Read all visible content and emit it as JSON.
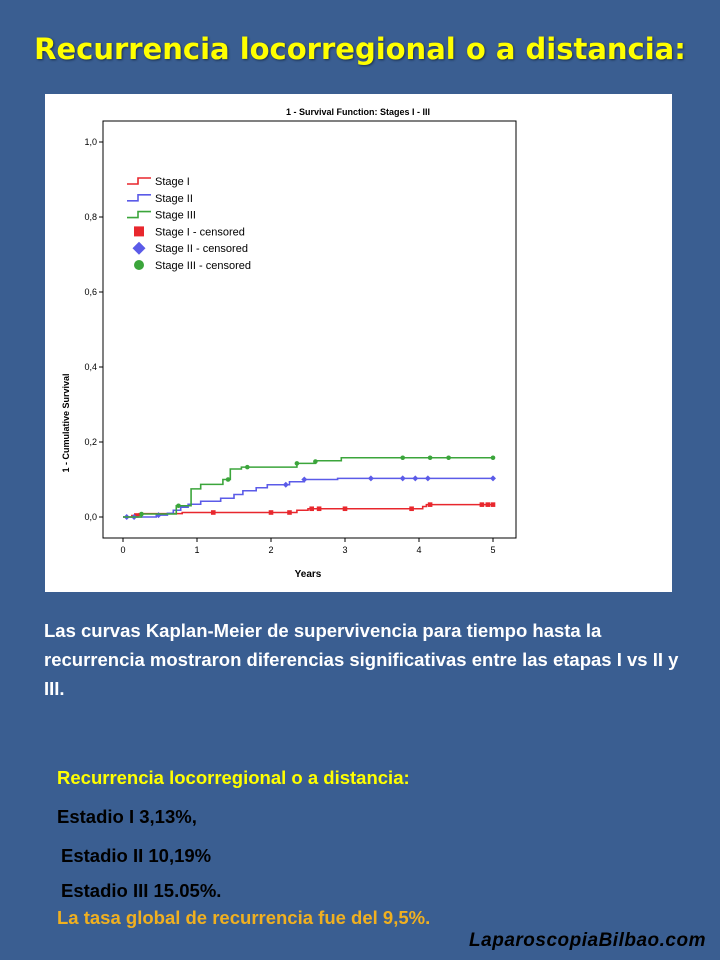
{
  "slide": {
    "title": "Recurrencia locorregional o a distancia:",
    "description": "Las curvas Kaplan-Meier de supervivencia para tiempo hasta la recurrencia mostraron diferencias significativas entre las etapas I vs II y III.",
    "summary_heading": "Recurrencia locorregional o a distancia:",
    "stats": [
      "Estadio I  3,13%,",
      "Estadio II 10,19%",
      "Estadio III 15.05%."
    ],
    "overall": "La tasa global de recurrencia fue del 9,5%.",
    "footer": "LaparoscopiaBilbao.com"
  },
  "chart_data": {
    "type": "line",
    "step": true,
    "title": "1 - Survival Function: Stages I - III",
    "xlabel": "Years",
    "ylabel": "1 - Cumulative Survival",
    "xlim": [
      0,
      5
    ],
    "ylim": [
      0,
      1.0
    ],
    "xticks": [
      "0",
      "1",
      "2",
      "3",
      "4",
      "5"
    ],
    "yticks": [
      "0,0",
      "0,2",
      "0,4",
      "0,6",
      "0,8",
      "1,0"
    ],
    "legend_position": "top-left",
    "grid": false,
    "legend": [
      "Stage I",
      "Stage II",
      "Stage III",
      "Stage I - censored",
      "Stage II - censored",
      "Stage III - censored"
    ],
    "series": [
      {
        "name": "Stage I",
        "color": "#E8272D",
        "censor_shape": "square",
        "steps": [
          [
            0,
            0
          ],
          [
            0.12,
            0.004
          ],
          [
            0.22,
            0.009
          ],
          [
            0.8,
            0.012
          ],
          [
            2.35,
            0.018
          ],
          [
            2.5,
            0.022
          ],
          [
            4.05,
            0.028
          ],
          [
            4.1,
            0.033
          ]
        ],
        "end_x": 5.0,
        "censored": [
          [
            0.18,
            0.004
          ],
          [
            1.22,
            0.012
          ],
          [
            2.0,
            0.012
          ],
          [
            2.25,
            0.012
          ],
          [
            2.55,
            0.022
          ],
          [
            2.65,
            0.022
          ],
          [
            3.0,
            0.022
          ],
          [
            3.9,
            0.022
          ],
          [
            4.15,
            0.033
          ],
          [
            4.85,
            0.033
          ],
          [
            4.93,
            0.033
          ],
          [
            5.0,
            0.033
          ]
        ]
      },
      {
        "name": "Stage II",
        "color": "#5B5BE8",
        "censor_shape": "diamond",
        "steps": [
          [
            0,
            0
          ],
          [
            0.45,
            0.005
          ],
          [
            0.6,
            0.01
          ],
          [
            0.68,
            0.018
          ],
          [
            0.78,
            0.026
          ],
          [
            0.88,
            0.034
          ],
          [
            1.05,
            0.042
          ],
          [
            1.32,
            0.05
          ],
          [
            1.5,
            0.06
          ],
          [
            1.62,
            0.07
          ],
          [
            1.8,
            0.078
          ],
          [
            1.95,
            0.086
          ],
          [
            2.25,
            0.094
          ],
          [
            2.45,
            0.1
          ],
          [
            2.9,
            0.103
          ]
        ],
        "end_x": 5.0,
        "censored": [
          [
            0.05,
            0
          ],
          [
            0.15,
            0
          ],
          [
            0.48,
            0.005
          ],
          [
            2.2,
            0.086
          ],
          [
            2.45,
            0.1
          ],
          [
            3.35,
            0.103
          ],
          [
            3.78,
            0.103
          ],
          [
            3.95,
            0.103
          ],
          [
            4.12,
            0.103
          ],
          [
            5.0,
            0.103
          ]
        ]
      },
      {
        "name": "Stage III",
        "color": "#3BA53B",
        "censor_shape": "circle",
        "steps": [
          [
            0,
            0
          ],
          [
            0.25,
            0.008
          ],
          [
            0.72,
            0.03
          ],
          [
            0.92,
            0.075
          ],
          [
            1.05,
            0.087
          ],
          [
            1.35,
            0.1
          ],
          [
            1.45,
            0.128
          ],
          [
            1.6,
            0.133
          ],
          [
            2.35,
            0.143
          ],
          [
            2.6,
            0.15
          ],
          [
            2.95,
            0.158
          ]
        ],
        "end_x": 5.0,
        "censored": [
          [
            0.25,
            0.008
          ],
          [
            0.75,
            0.03
          ],
          [
            1.42,
            0.1
          ],
          [
            1.68,
            0.133
          ],
          [
            2.35,
            0.143
          ],
          [
            2.6,
            0.148
          ],
          [
            3.78,
            0.158
          ],
          [
            4.15,
            0.158
          ],
          [
            4.4,
            0.158
          ],
          [
            5.0,
            0.158
          ]
        ]
      }
    ]
  }
}
